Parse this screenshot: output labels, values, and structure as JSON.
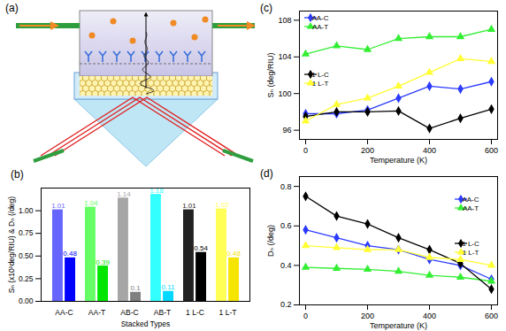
{
  "diagram": {
    "title": "(a)"
  },
  "chart_data": [
    {
      "type": "bar",
      "title": "(b)",
      "x_label": "Stacked Types",
      "y_label": "Sₙ (x10²deg/RIU) & Dₙ (/deg)",
      "categories": [
        "AA-C",
        "AA-T",
        "AB-C",
        "AB-T",
        "1 L-C",
        "1 L-T"
      ],
      "series": [
        {
          "values": [
            1.01,
            1.04,
            1.14,
            1.18,
            1.01,
            1.02
          ],
          "colors": [
            "#6666ff",
            "#66ff66",
            "#a6a6a6",
            "#33ffff",
            "#222222",
            "#ffff55"
          ]
        },
        {
          "values": [
            0.48,
            0.39,
            0.1,
            0.11,
            0.54,
            0.48
          ],
          "colors": [
            "#0000ff",
            "#00e600",
            "#808080",
            "#00d8ff",
            "#000000",
            "#f5e500"
          ]
        }
      ],
      "ylim": [
        0,
        1.25
      ],
      "yticks": [
        {
          "value": 0,
          "label": "0.00"
        },
        {
          "value": 0.25,
          "label": "0.25"
        },
        {
          "value": 0.5,
          "label": "0.50"
        },
        {
          "value": 0.75,
          "label": "0.75"
        },
        {
          "value": 1,
          "label": "1.00"
        }
      ],
      "data_labels": true
    },
    {
      "type": "line",
      "title": "(c)",
      "x_label": "Temperature (K)",
      "y_label": "Sₙ (deg/RIU)",
      "x": [
        0,
        100,
        200,
        300,
        400,
        500,
        600
      ],
      "series": [
        {
          "name": "AA-C",
          "color": "#2b3bff",
          "marker": "diamond",
          "values": [
            97.8,
            97.8,
            98.2,
            99.5,
            100.8,
            100.5,
            101.3
          ]
        },
        {
          "name": "AA-T",
          "color": "#33ee33",
          "marker": "triangle",
          "values": [
            104.3,
            105.2,
            104.8,
            106.0,
            106.2,
            106.2,
            107.0
          ]
        },
        {
          "name": "1 L-C",
          "color": "#000000",
          "marker": "diamond",
          "values": [
            97.5,
            98.0,
            98.0,
            98.1,
            96.2,
            97.3,
            98.3
          ]
        },
        {
          "name": "1 L-T",
          "color": "#ffff33",
          "marker": "triangle",
          "values": [
            97.0,
            98.8,
            99.5,
            100.8,
            102.3,
            103.8,
            103.5
          ]
        }
      ],
      "xlim": [
        -20,
        620
      ],
      "xticks": [
        0,
        200,
        400,
        600
      ],
      "ylim": [
        95,
        109
      ],
      "yticks": [
        96,
        100,
        104,
        108
      ],
      "legend": "upper left"
    },
    {
      "type": "line",
      "title": "(d)",
      "x_label": "Temperature (K)",
      "y_label": "Dₙ (/deg)",
      "x": [
        0,
        100,
        200,
        300,
        400,
        500,
        600
      ],
      "series": [
        {
          "name": "AA-C",
          "color": "#2b3bff",
          "marker": "diamond",
          "values": [
            0.58,
            0.54,
            0.5,
            0.48,
            0.43,
            0.4,
            0.33
          ]
        },
        {
          "name": "AA-T",
          "color": "#33ee33",
          "marker": "triangle",
          "values": [
            0.39,
            0.385,
            0.38,
            0.37,
            0.35,
            0.34,
            0.32
          ]
        },
        {
          "name": "1 L-C",
          "color": "#000000",
          "marker": "diamond",
          "values": [
            0.75,
            0.65,
            0.61,
            0.54,
            0.48,
            0.41,
            0.28
          ]
        },
        {
          "name": "1 L-T",
          "color": "#ffff33",
          "marker": "triangle",
          "values": [
            0.5,
            0.49,
            0.48,
            0.48,
            0.44,
            0.43,
            0.4
          ]
        }
      ],
      "xlim": [
        -20,
        620
      ],
      "xticks": [
        0,
        200,
        400,
        600
      ],
      "ylim": [
        0.2,
        0.85
      ],
      "yticks": [
        0.2,
        0.4,
        0.6,
        0.8
      ],
      "legend": "upper right"
    }
  ]
}
